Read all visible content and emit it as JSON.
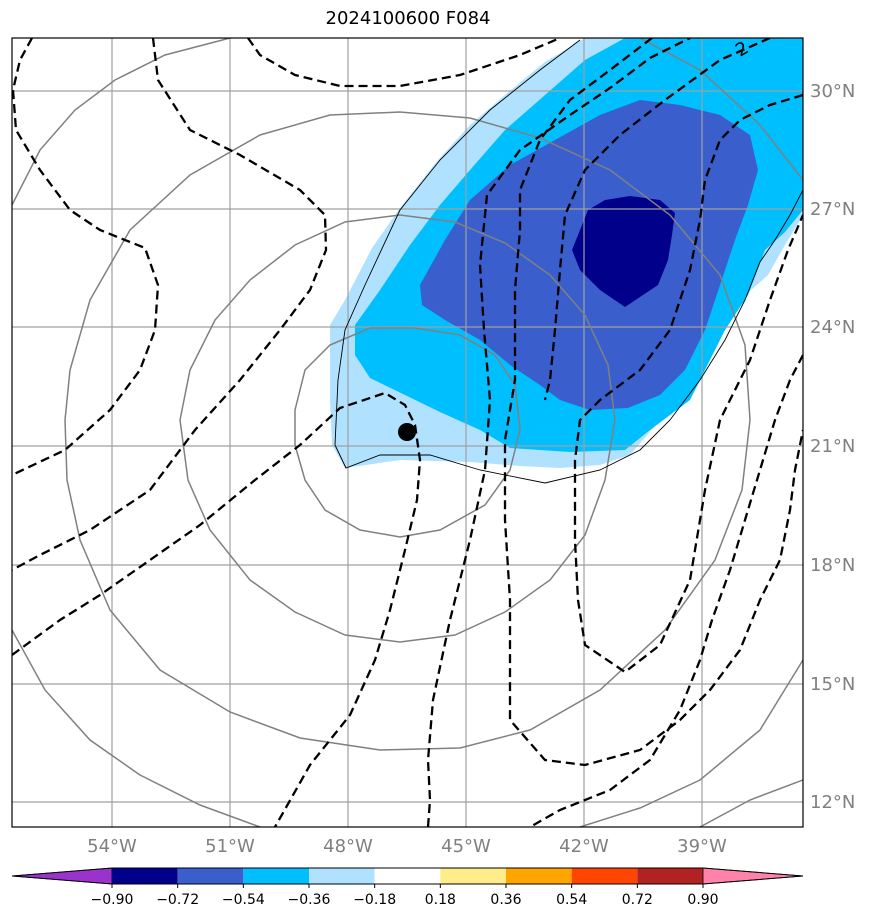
{
  "title": "2024100600 F084",
  "lon_labels": [
    "54°W",
    "51°W",
    "48°W",
    "45°W",
    "42°W",
    "39°W"
  ],
  "lat_labels": [
    "30°N",
    "27°N",
    "24°N",
    "21°N",
    "18°N",
    "15°N",
    "12°N"
  ],
  "contour_label": "2",
  "colorbar": {
    "ticks": [
      "−0.90",
      "−0.72",
      "−0.54",
      "−0.36",
      "−0.18",
      "0.18",
      "0.36",
      "0.54",
      "0.72",
      "0.90"
    ],
    "colors": [
      "#9933cc",
      "#00008b",
      "#3a5fcd",
      "#00bfff",
      "#b0e2ff",
      "#ffffff",
      "#ffec8b",
      "#ffa500",
      "#ff4500",
      "#b22222",
      "#ff82ab"
    ]
  },
  "colors": {
    "grid": "#a0a0a0",
    "isobar": "#808080",
    "dashed": "#000000",
    "light_blue": "#b0e2ff",
    "sky_blue": "#00bfff",
    "royal_blue": "#3a5fcd",
    "navy": "#00008b"
  },
  "storm_marker": "storm-center-dot"
}
